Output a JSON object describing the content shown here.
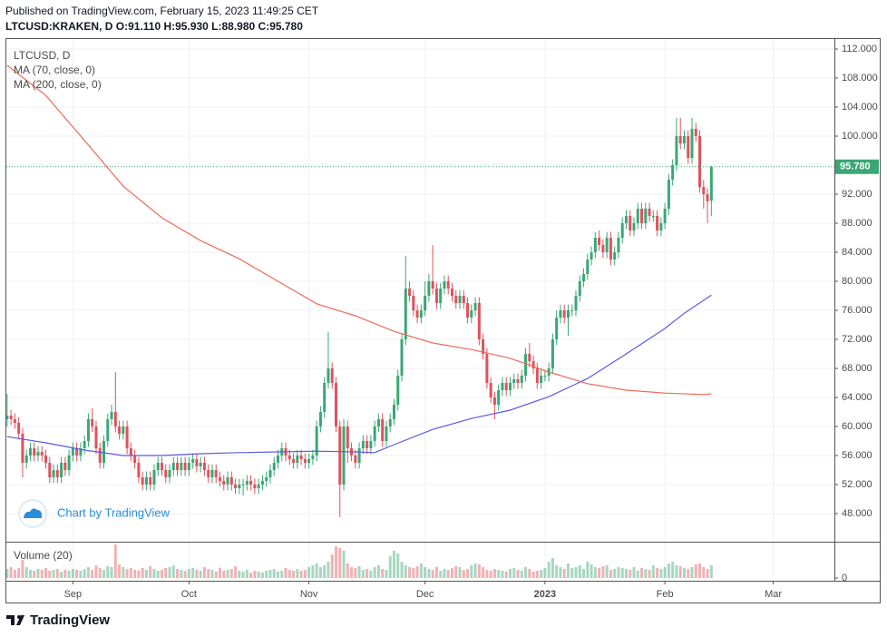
{
  "header": {
    "published": "Published on TradingView.com, February 15, 2023 11:49:25 CET",
    "quote": "LTCUSD:KRAKEN, D O:91.110 H:95.930 L:88.980 C:95.780"
  },
  "watermark": "Chart by TradingView",
  "brand": "TradingView",
  "chart_data": {
    "type": "candlestick",
    "title": "LTCUSD, D",
    "up_color": "#3ba776",
    "down_color": "#e0525c",
    "grid": true,
    "xlim": [
      -0.2,
      213.8
    ],
    "xticks": [
      {
        "value": 17,
        "label": "Sep"
      },
      {
        "value": 47,
        "label": "Oct"
      },
      {
        "value": 78,
        "label": "Nov"
      },
      {
        "value": 108,
        "label": "Dec"
      },
      {
        "value": 139,
        "label": "2023"
      },
      {
        "value": 170,
        "label": "Feb"
      },
      {
        "value": 198,
        "label": "Mar"
      }
    ],
    "ylim": [
      44.125,
      113.5
    ],
    "yticks": [
      {
        "value": 48,
        "label": "48.000"
      },
      {
        "value": 52,
        "label": "52.000"
      },
      {
        "value": 56,
        "label": "56.000"
      },
      {
        "value": 60,
        "label": "60.000"
      },
      {
        "value": 64,
        "label": "64.000"
      },
      {
        "value": 68,
        "label": "68.000"
      },
      {
        "value": 72,
        "label": "72.000"
      },
      {
        "value": 76,
        "label": "76.000"
      },
      {
        "value": 80,
        "label": "80.000"
      },
      {
        "value": 84,
        "label": "84.000"
      },
      {
        "value": 88,
        "label": "88.000"
      },
      {
        "value": 92,
        "label": "92.000"
      },
      {
        "value": 96,
        "label": "96.000"
      },
      {
        "value": 100,
        "label": "100.000"
      },
      {
        "value": 104,
        "label": "104.000"
      },
      {
        "value": 108,
        "label": "108.000"
      },
      {
        "value": 112,
        "label": "112.000"
      }
    ],
    "last_price": {
      "value": 95.78,
      "label": "95.780",
      "color": "#3ba776"
    },
    "ohlc": [
      [
        61,
        64.5,
        60,
        61.5
      ],
      [
        61.5,
        62.3,
        60.2,
        61
      ],
      [
        61,
        61.8,
        59.7,
        60.5
      ],
      [
        60.5,
        61.3,
        58.2,
        59
      ],
      [
        59,
        59.8,
        53,
        55
      ],
      [
        55,
        56.8,
        54.2,
        56
      ],
      [
        56,
        57.8,
        55.2,
        57
      ],
      [
        57,
        57.8,
        55.2,
        56
      ],
      [
        56,
        57.3,
        55.2,
        56.5
      ],
      [
        56.5,
        57.3,
        55.2,
        56
      ],
      [
        56,
        56.8,
        54.2,
        55
      ],
      [
        55,
        55.8,
        52.2,
        53
      ],
      [
        53,
        54.8,
        52.2,
        54
      ],
      [
        54,
        54.8,
        52.2,
        53
      ],
      [
        53,
        55.8,
        52.2,
        55
      ],
      [
        55,
        55.8,
        53.2,
        54
      ],
      [
        54,
        56.8,
        53.2,
        56
      ],
      [
        56,
        57.8,
        55.2,
        57
      ],
      [
        57,
        57.8,
        55.2,
        56
      ],
      [
        56,
        57.8,
        55.2,
        57
      ],
      [
        57,
        58.8,
        56.2,
        58
      ],
      [
        58,
        61.8,
        57.2,
        61
      ],
      [
        61,
        62.5,
        59.2,
        60
      ],
      [
        60,
        60.8,
        56.2,
        57
      ],
      [
        57,
        57.8,
        54.2,
        55
      ],
      [
        55,
        58.8,
        54.2,
        58
      ],
      [
        58,
        61.8,
        57.2,
        61
      ],
      [
        61,
        63,
        60.2,
        62
      ],
      [
        62,
        67.5,
        59.2,
        60
      ],
      [
        60,
        60.8,
        58.2,
        59
      ],
      [
        59,
        60.8,
        58.2,
        60
      ],
      [
        60,
        60.8,
        56.2,
        57
      ],
      [
        57,
        57.8,
        55.2,
        56
      ],
      [
        56,
        56.8,
        54.2,
        55
      ],
      [
        55,
        55.8,
        52.2,
        53
      ],
      [
        53,
        53.8,
        51.2,
        52
      ],
      [
        52,
        53.8,
        51.2,
        53
      ],
      [
        53,
        53.8,
        51.2,
        52
      ],
      [
        52,
        54.8,
        51.2,
        54
      ],
      [
        54,
        55.8,
        53.2,
        55
      ],
      [
        55,
        55.8,
        53.2,
        54
      ],
      [
        54,
        54.8,
        52.2,
        53
      ],
      [
        53,
        54.8,
        52.2,
        54
      ],
      [
        54,
        55.8,
        53.2,
        55
      ],
      [
        55,
        55.8,
        53.2,
        54
      ],
      [
        54,
        55.8,
        53.2,
        55
      ],
      [
        55,
        55.8,
        53.2,
        54
      ],
      [
        54,
        55.8,
        53.2,
        55
      ],
      [
        55,
        56.3,
        54.2,
        55.5
      ],
      [
        55.5,
        56.3,
        53.7,
        54.5
      ],
      [
        54.5,
        55.8,
        53.7,
        55
      ],
      [
        55,
        55.8,
        53.2,
        54
      ],
      [
        54,
        54.8,
        52.2,
        53
      ],
      [
        53,
        54.8,
        52.2,
        54
      ],
      [
        54,
        54.8,
        52.2,
        53
      ],
      [
        53,
        53.8,
        51.7,
        52.5
      ],
      [
        52.5,
        53.3,
        51.2,
        52
      ],
      [
        52,
        53.8,
        51.2,
        53
      ],
      [
        53,
        53.8,
        51.2,
        52
      ],
      [
        52,
        52.8,
        50.7,
        51.5
      ],
      [
        51.5,
        52.8,
        50.7,
        52
      ],
      [
        52,
        52.8,
        50.5,
        52
      ],
      [
        52,
        53.3,
        51.2,
        52.5
      ],
      [
        52.5,
        53.3,
        51.2,
        52
      ],
      [
        52,
        52.8,
        50.7,
        51.5
      ],
      [
        51.5,
        52.8,
        50.7,
        52
      ],
      [
        52,
        53.3,
        51.2,
        52.5
      ],
      [
        52.5,
        53.8,
        51.7,
        53
      ],
      [
        53,
        54.8,
        52.2,
        54
      ],
      [
        54,
        55.8,
        53.2,
        55
      ],
      [
        55,
        56.8,
        54.2,
        56
      ],
      [
        56,
        57.8,
        55.2,
        57
      ],
      [
        57,
        57.8,
        55.2,
        56
      ],
      [
        56,
        56.8,
        54.7,
        55.5
      ],
      [
        55.5,
        56.3,
        54.2,
        55
      ],
      [
        55,
        56.8,
        54.2,
        56
      ],
      [
        56,
        56.8,
        54.7,
        55.5
      ],
      [
        55.5,
        56.3,
        54.2,
        55
      ],
      [
        55,
        56.3,
        54.2,
        55.5
      ],
      [
        55.5,
        56.8,
        54.7,
        56
      ],
      [
        56,
        60.8,
        55.2,
        60
      ],
      [
        60,
        62.8,
        59.2,
        62
      ],
      [
        62,
        66.8,
        61.2,
        66
      ],
      [
        66,
        73,
        65.2,
        68
      ],
      [
        68,
        68.8,
        65.2,
        66
      ],
      [
        66,
        66.8,
        59.2,
        60
      ],
      [
        60,
        60.8,
        47.5,
        52
      ],
      [
        52,
        61,
        51.2,
        60
      ],
      [
        60,
        60.8,
        55,
        57
      ],
      [
        57,
        57.8,
        55.2,
        56
      ],
      [
        56,
        56.8,
        54.2,
        55
      ],
      [
        55,
        57.8,
        54.2,
        57
      ],
      [
        57,
        58.8,
        56.2,
        58
      ],
      [
        58,
        58.8,
        56.2,
        57
      ],
      [
        57,
        58.8,
        56.2,
        58
      ],
      [
        58,
        60.8,
        57.2,
        60
      ],
      [
        60,
        61.8,
        59.2,
        61
      ],
      [
        61,
        61.8,
        57.2,
        58
      ],
      [
        58,
        60.8,
        57.2,
        60
      ],
      [
        60,
        61.8,
        59.2,
        61
      ],
      [
        61,
        63.8,
        60.2,
        63
      ],
      [
        63,
        67.8,
        62.2,
        67
      ],
      [
        67,
        72.8,
        66.2,
        72
      ],
      [
        72,
        83.5,
        71.2,
        79
      ],
      [
        79,
        80,
        77.2,
        78
      ],
      [
        78,
        78.8,
        75.2,
        76
      ],
      [
        76,
        76.8,
        74.2,
        75
      ],
      [
        75,
        76.8,
        74.2,
        76
      ],
      [
        76,
        80,
        75.2,
        78
      ],
      [
        78,
        81,
        77.2,
        80
      ],
      [
        80,
        85,
        78.2,
        79
      ],
      [
        79,
        79.8,
        76.2,
        77
      ],
      [
        77,
        79.8,
        76.2,
        79
      ],
      [
        79,
        80.8,
        78.2,
        80
      ],
      [
        80,
        80.8,
        78.2,
        79
      ],
      [
        79,
        79.8,
        77.2,
        78
      ],
      [
        78,
        78.8,
        76.2,
        77
      ],
      [
        77,
        78.8,
        76.2,
        78
      ],
      [
        78,
        78.8,
        76.2,
        77
      ],
      [
        77,
        77.8,
        74.2,
        75
      ],
      [
        75,
        76.8,
        74.2,
        76
      ],
      [
        76,
        77.8,
        75.2,
        77
      ],
      [
        77,
        77.8,
        71.2,
        72
      ],
      [
        72,
        72.8,
        69.2,
        70
      ],
      [
        70,
        70.8,
        65.2,
        66
      ],
      [
        66,
        66.8,
        63.2,
        64
      ],
      [
        64,
        64.8,
        61,
        63
      ],
      [
        63,
        65.8,
        62.2,
        65
      ],
      [
        65,
        66.8,
        64.2,
        66
      ],
      [
        66,
        66.8,
        64.2,
        65
      ],
      [
        65,
        66.8,
        64.2,
        66
      ],
      [
        66,
        67.3,
        65.2,
        66.5
      ],
      [
        66.5,
        67.3,
        65.2,
        66
      ],
      [
        66,
        67.8,
        65.2,
        67
      ],
      [
        67,
        70.8,
        66.2,
        70
      ],
      [
        70,
        71.5,
        68.2,
        69
      ],
      [
        69,
        69.8,
        67.2,
        68
      ],
      [
        68,
        68.8,
        65.2,
        66
      ],
      [
        66,
        67.8,
        65.2,
        67
      ],
      [
        67,
        67.8,
        66.2,
        67
      ],
      [
        67,
        68.8,
        66.2,
        68
      ],
      [
        68,
        72.8,
        67.2,
        72
      ],
      [
        72,
        76,
        71.2,
        75
      ],
      [
        75,
        76.8,
        74.2,
        76
      ],
      [
        76,
        76.8,
        74.2,
        75
      ],
      [
        75,
        76.8,
        72.5,
        76
      ],
      [
        76,
        76.8,
        75.2,
        76
      ],
      [
        76,
        78.8,
        75.2,
        78
      ],
      [
        78,
        80.8,
        77.2,
        80
      ],
      [
        80,
        81.8,
        79.2,
        81
      ],
      [
        81,
        83.8,
        80.2,
        83
      ],
      [
        83,
        84.8,
        82.2,
        84
      ],
      [
        84,
        86.8,
        83.2,
        86
      ],
      [
        86,
        87,
        84.2,
        85
      ],
      [
        85,
        85.8,
        83.2,
        84
      ],
      [
        84,
        86.8,
        83.2,
        86
      ],
      [
        86,
        86.8,
        82.2,
        83
      ],
      [
        83,
        84.8,
        82.2,
        84
      ],
      [
        84,
        86.8,
        83.2,
        86
      ],
      [
        86,
        88.8,
        85.2,
        88
      ],
      [
        88,
        89.8,
        87.2,
        89
      ],
      [
        89,
        89.8,
        86.2,
        87
      ],
      [
        87,
        88.8,
        86.2,
        88
      ],
      [
        88,
        90.8,
        87.2,
        90
      ],
      [
        90,
        90.8,
        87.2,
        88
      ],
      [
        88,
        90.8,
        87.2,
        90
      ],
      [
        90,
        90.8,
        88.2,
        89
      ],
      [
        89,
        89.8,
        88.2,
        89
      ],
      [
        89,
        89.8,
        86.2,
        87
      ],
      [
        87,
        88.8,
        86.2,
        88
      ],
      [
        88,
        90.8,
        87.2,
        90
      ],
      [
        90,
        94.8,
        89.2,
        94
      ],
      [
        94,
        96.8,
        93.2,
        96
      ],
      [
        96,
        102.5,
        95.2,
        100
      ],
      [
        100,
        102.5,
        98.2,
        99
      ],
      [
        99,
        100.8,
        98.2,
        100
      ],
      [
        100,
        100.8,
        96.2,
        97
      ],
      [
        97,
        102.5,
        96.2,
        101
      ],
      [
        101,
        101.8,
        99.2,
        100
      ],
      [
        100,
        100.8,
        92.2,
        93
      ],
      [
        93,
        94,
        90,
        92
      ],
      [
        92,
        92.8,
        88,
        91
      ],
      [
        91.11,
        95.93,
        88.98,
        95.78
      ]
    ],
    "series": [
      {
        "name": "MA (70, close, 0)",
        "color": "#5b5be0",
        "x": [
          0,
          10,
          20,
          30,
          40,
          50,
          60,
          70,
          80,
          90,
          95,
          100,
          110,
          120,
          130,
          140,
          150,
          160,
          170,
          175,
          182
        ],
        "values": [
          58.6,
          57.75,
          56.75,
          56,
          56,
          56.25,
          56.4,
          56.5,
          56.6,
          56.5,
          56.4,
          57.5,
          59.6,
          61.1,
          62.25,
          64.1,
          66.6,
          70,
          73.5,
          75.6,
          78.1
        ]
      },
      {
        "name": "MA (200, close, 0)",
        "color": "#ee6a5c",
        "x": [
          0,
          10,
          20,
          30,
          40,
          50,
          60,
          70,
          80,
          90,
          100,
          110,
          120,
          130,
          140,
          150,
          160,
          170,
          180,
          182
        ],
        "values": [
          109.75,
          105.6,
          99.4,
          93.1,
          88.75,
          85.6,
          83.1,
          80,
          76.9,
          75.25,
          73.1,
          71.5,
          70.6,
          69.4,
          67.5,
          65.9,
          65,
          64.6,
          64.4,
          64.5
        ]
      }
    ],
    "volume": {
      "name": "Volume (20)",
      "ylim": [
        0,
        40
      ],
      "yticks": [
        0
      ],
      "values": [
        10,
        12,
        9,
        11,
        20,
        12,
        9,
        8,
        10,
        9,
        11,
        8,
        9,
        10,
        7,
        9,
        8,
        10,
        9,
        8,
        10,
        12,
        9,
        14,
        11,
        9,
        13,
        12,
        37,
        15,
        12,
        10,
        11,
        9,
        8,
        11,
        9,
        13,
        10,
        8,
        9,
        11,
        12,
        14,
        10,
        9,
        8,
        10,
        11,
        9,
        8,
        12,
        10,
        9,
        7,
        11,
        8,
        9,
        10,
        13,
        8,
        7,
        9,
        6,
        8,
        7,
        6,
        8,
        9,
        10,
        7,
        8,
        11,
        9,
        8,
        10,
        8,
        9,
        12,
        14,
        16,
        12,
        14,
        18,
        26,
        35,
        33,
        30,
        16,
        12,
        11,
        13,
        9,
        10,
        8,
        12,
        14,
        10,
        9,
        24,
        30,
        27,
        18,
        14,
        12,
        11,
        13,
        16,
        12,
        10,
        9,
        12,
        8,
        10,
        9,
        11,
        13,
        12,
        9,
        10,
        14,
        16,
        15,
        12,
        9,
        8,
        10,
        9,
        8,
        7,
        10,
        11,
        9,
        8,
        12,
        10,
        7,
        8,
        9,
        11,
        18,
        22,
        14,
        12,
        10,
        16,
        11,
        12,
        14,
        10,
        18,
        15,
        12,
        11,
        13,
        14,
        9,
        10,
        12,
        11,
        10,
        9,
        12,
        8,
        11,
        10,
        9,
        14,
        11,
        10,
        12,
        16,
        18,
        14,
        13,
        11,
        10,
        12,
        15,
        16,
        12,
        10,
        14
      ]
    }
  }
}
